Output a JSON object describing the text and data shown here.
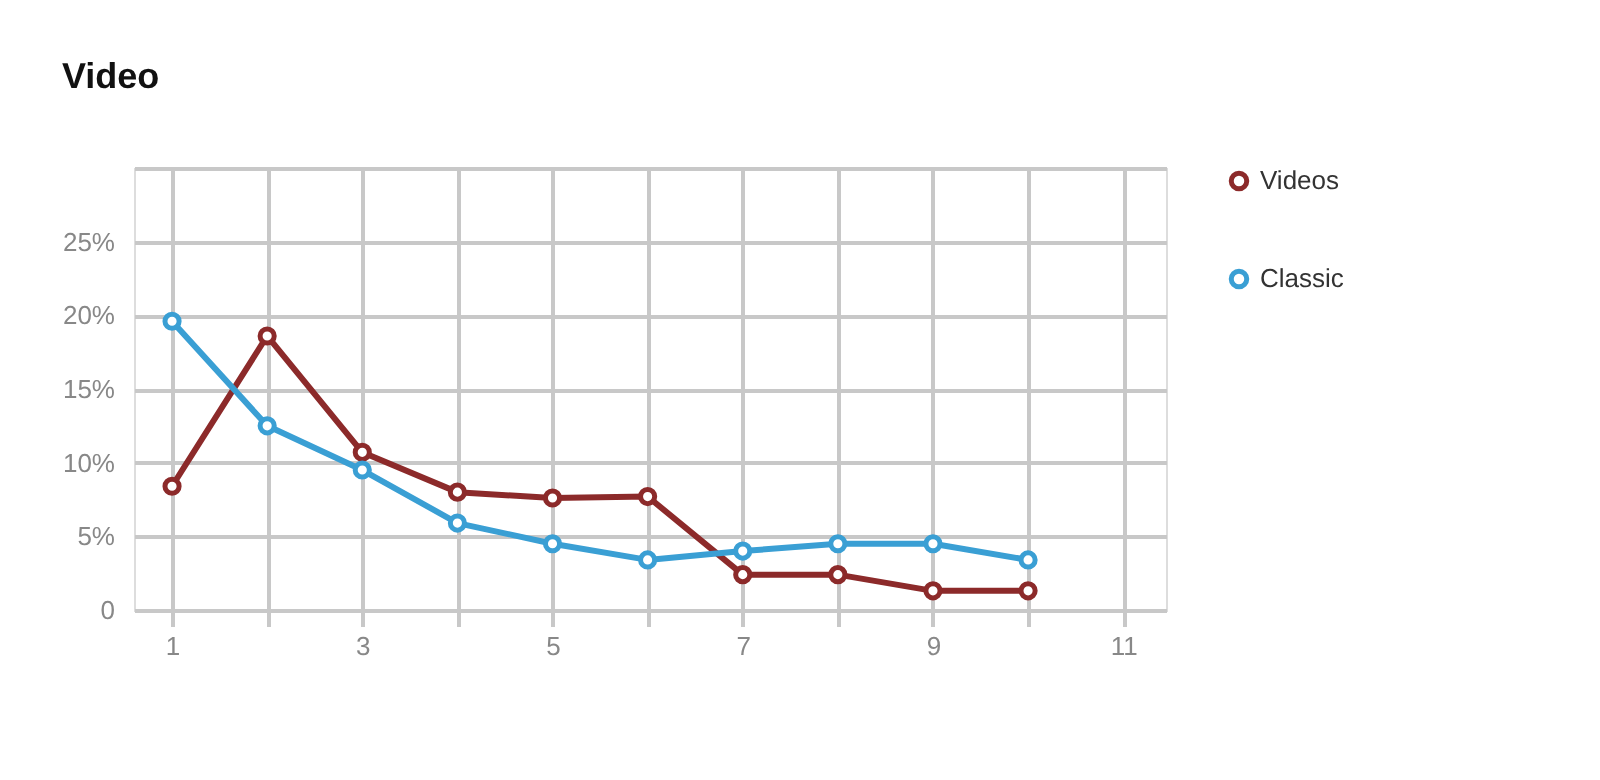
{
  "chart_data": {
    "type": "line",
    "title": "Video",
    "x": [
      1,
      2,
      3,
      4,
      5,
      6,
      7,
      8,
      9,
      10
    ],
    "series": [
      {
        "name": "Videos",
        "color": "#8c2a2a",
        "values": [
          8.4,
          18.6,
          10.7,
          8.0,
          7.6,
          7.7,
          2.4,
          2.4,
          1.3,
          1.3
        ]
      },
      {
        "name": "Classic",
        "color": "#3a9fd4",
        "values": [
          19.6,
          12.5,
          9.5,
          5.9,
          4.5,
          3.4,
          4.0,
          4.5,
          4.5,
          3.4
        ]
      }
    ],
    "xlim": [
      0.6,
      11.45
    ],
    "xticks": [
      1,
      {
        "value": 2,
        "label": null
      },
      3,
      {
        "value": 4,
        "label": null
      },
      5,
      {
        "value": 6,
        "label": null
      },
      7,
      {
        "value": 8,
        "label": null
      },
      9,
      {
        "value": 10,
        "label": null
      },
      11
    ],
    "ylim": [
      0,
      30
    ],
    "yticks": [
      {
        "value": 0,
        "label": "0"
      },
      {
        "value": 5,
        "label": "5%"
      },
      {
        "value": 10,
        "label": "10%"
      },
      {
        "value": 15,
        "label": "15%"
      },
      {
        "value": 20,
        "label": "20%"
      },
      {
        "value": 25,
        "label": "25%"
      },
      {
        "value": 30,
        "label": null
      }
    ],
    "grid": true,
    "legend": "right",
    "marker": "circle",
    "line_style": "solid"
  }
}
